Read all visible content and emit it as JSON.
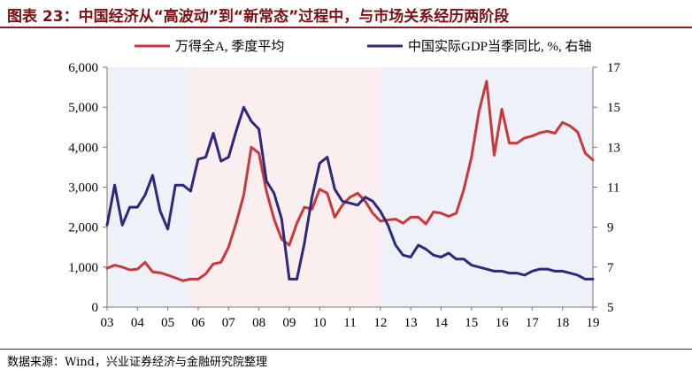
{
  "header": {
    "title": "图表 23：中国经济从“高波动”到“新常态”过程中，与市场关系经历两阶段"
  },
  "footer": {
    "source": "数据来源：Wind，兴业证券经济与金融研究院整理"
  },
  "colors": {
    "wind_a": "#c8393e",
    "gdp": "#2a2a7c",
    "shade_blue": "#eef1f8",
    "shade_red": "#fbeeee",
    "title": "#7b1113"
  },
  "chart_data": {
    "type": "line",
    "title": "",
    "legend_placement": "top-center",
    "x_ticks": [
      "03",
      "04",
      "05",
      "06",
      "07",
      "08",
      "09",
      "10",
      "11",
      "12",
      "13",
      "14",
      "15",
      "16",
      "17",
      "18",
      "19"
    ],
    "xlim": [
      2003.0,
      2019.0
    ],
    "y_left": {
      "lim": [
        0,
        6000
      ],
      "ticks": [
        "0",
        "1,000",
        "2,000",
        "3,000",
        "4,000",
        "5,000",
        "6,000"
      ],
      "tick_values": [
        0,
        1000,
        2000,
        3000,
        4000,
        5000,
        6000
      ]
    },
    "y_right": {
      "lim": [
        5,
        17
      ],
      "ticks": [
        "5",
        "7",
        "9",
        "11",
        "13",
        "15",
        "17"
      ],
      "tick_values": [
        5,
        7,
        9,
        11,
        13,
        15,
        17
      ]
    },
    "shaded_regions": [
      {
        "x0": 2003.0,
        "x1": 2005.75,
        "color": "blue"
      },
      {
        "x0": 2005.75,
        "x1": 2012.0,
        "color": "red"
      },
      {
        "x0": 2012.0,
        "x1": 2019.0,
        "color": "blue"
      }
    ],
    "series": [
      {
        "name": "万得全A, 季度平均",
        "axis": "left",
        "x": [
          2003.0,
          2003.25,
          2003.5,
          2003.75,
          2004.0,
          2004.25,
          2004.5,
          2004.75,
          2005.0,
          2005.25,
          2005.5,
          2005.75,
          2006.0,
          2006.25,
          2006.5,
          2006.75,
          2007.0,
          2007.25,
          2007.5,
          2007.75,
          2008.0,
          2008.25,
          2008.5,
          2008.75,
          2009.0,
          2009.25,
          2009.5,
          2009.75,
          2010.0,
          2010.25,
          2010.5,
          2010.75,
          2011.0,
          2011.25,
          2011.5,
          2011.75,
          2012.0,
          2012.25,
          2012.5,
          2012.75,
          2013.0,
          2013.25,
          2013.5,
          2013.75,
          2014.0,
          2014.25,
          2014.5,
          2014.75,
          2015.0,
          2015.25,
          2015.5,
          2015.75,
          2016.0,
          2016.25,
          2016.5,
          2016.75,
          2017.0,
          2017.25,
          2017.5,
          2017.75,
          2018.0,
          2018.25,
          2018.5,
          2018.75,
          2019.0
        ],
        "values": [
          970,
          1050,
          1000,
          930,
          950,
          1120,
          880,
          860,
          800,
          730,
          660,
          700,
          700,
          830,
          1080,
          1120,
          1500,
          2100,
          2800,
          4000,
          3850,
          2900,
          2200,
          1700,
          1550,
          2100,
          2500,
          2450,
          2950,
          2850,
          2250,
          2550,
          2750,
          2850,
          2650,
          2350,
          2150,
          2180,
          2200,
          2100,
          2250,
          2250,
          2080,
          2380,
          2350,
          2270,
          2350,
          2950,
          3750,
          4900,
          5650,
          3800,
          4950,
          4100,
          4100,
          4230,
          4280,
          4360,
          4400,
          4350,
          4620,
          4530,
          4380,
          3850,
          3680
        ]
      },
      {
        "name": "中国实际GDP当季同比, %, 右轴",
        "axis": "right",
        "x": [
          2003.0,
          2003.25,
          2003.5,
          2003.75,
          2004.0,
          2004.25,
          2004.5,
          2004.75,
          2005.0,
          2005.25,
          2005.5,
          2005.75,
          2006.0,
          2006.25,
          2006.5,
          2006.75,
          2007.0,
          2007.25,
          2007.5,
          2007.75,
          2008.0,
          2008.25,
          2008.5,
          2008.75,
          2009.0,
          2009.25,
          2009.5,
          2009.75,
          2010.0,
          2010.25,
          2010.5,
          2010.75,
          2011.0,
          2011.25,
          2011.5,
          2011.75,
          2012.0,
          2012.25,
          2012.5,
          2012.75,
          2013.0,
          2013.25,
          2013.5,
          2013.75,
          2014.0,
          2014.25,
          2014.5,
          2014.75,
          2015.0,
          2015.25,
          2015.5,
          2015.75,
          2016.0,
          2016.25,
          2016.5,
          2016.75,
          2017.0,
          2017.25,
          2017.5,
          2017.75,
          2018.0,
          2018.25,
          2018.5,
          2018.75,
          2019.0
        ],
        "values": [
          9.1,
          11.1,
          9.1,
          10.0,
          10.0,
          10.6,
          11.6,
          9.8,
          8.9,
          11.1,
          11.1,
          10.8,
          12.4,
          12.5,
          13.7,
          12.3,
          12.5,
          13.8,
          15.0,
          14.3,
          13.9,
          11.3,
          10.7,
          9.4,
          6.4,
          6.4,
          8.2,
          10.5,
          12.2,
          12.5,
          10.9,
          10.3,
          10.2,
          10.1,
          10.5,
          10.3,
          9.8,
          9.1,
          8.1,
          7.6,
          7.5,
          8.1,
          7.9,
          7.6,
          7.5,
          7.7,
          7.4,
          7.4,
          7.1,
          7.0,
          6.9,
          6.8,
          6.8,
          6.7,
          6.7,
          6.6,
          6.8,
          6.9,
          6.9,
          6.8,
          6.8,
          6.7,
          6.6,
          6.4,
          6.4
        ]
      }
    ]
  }
}
